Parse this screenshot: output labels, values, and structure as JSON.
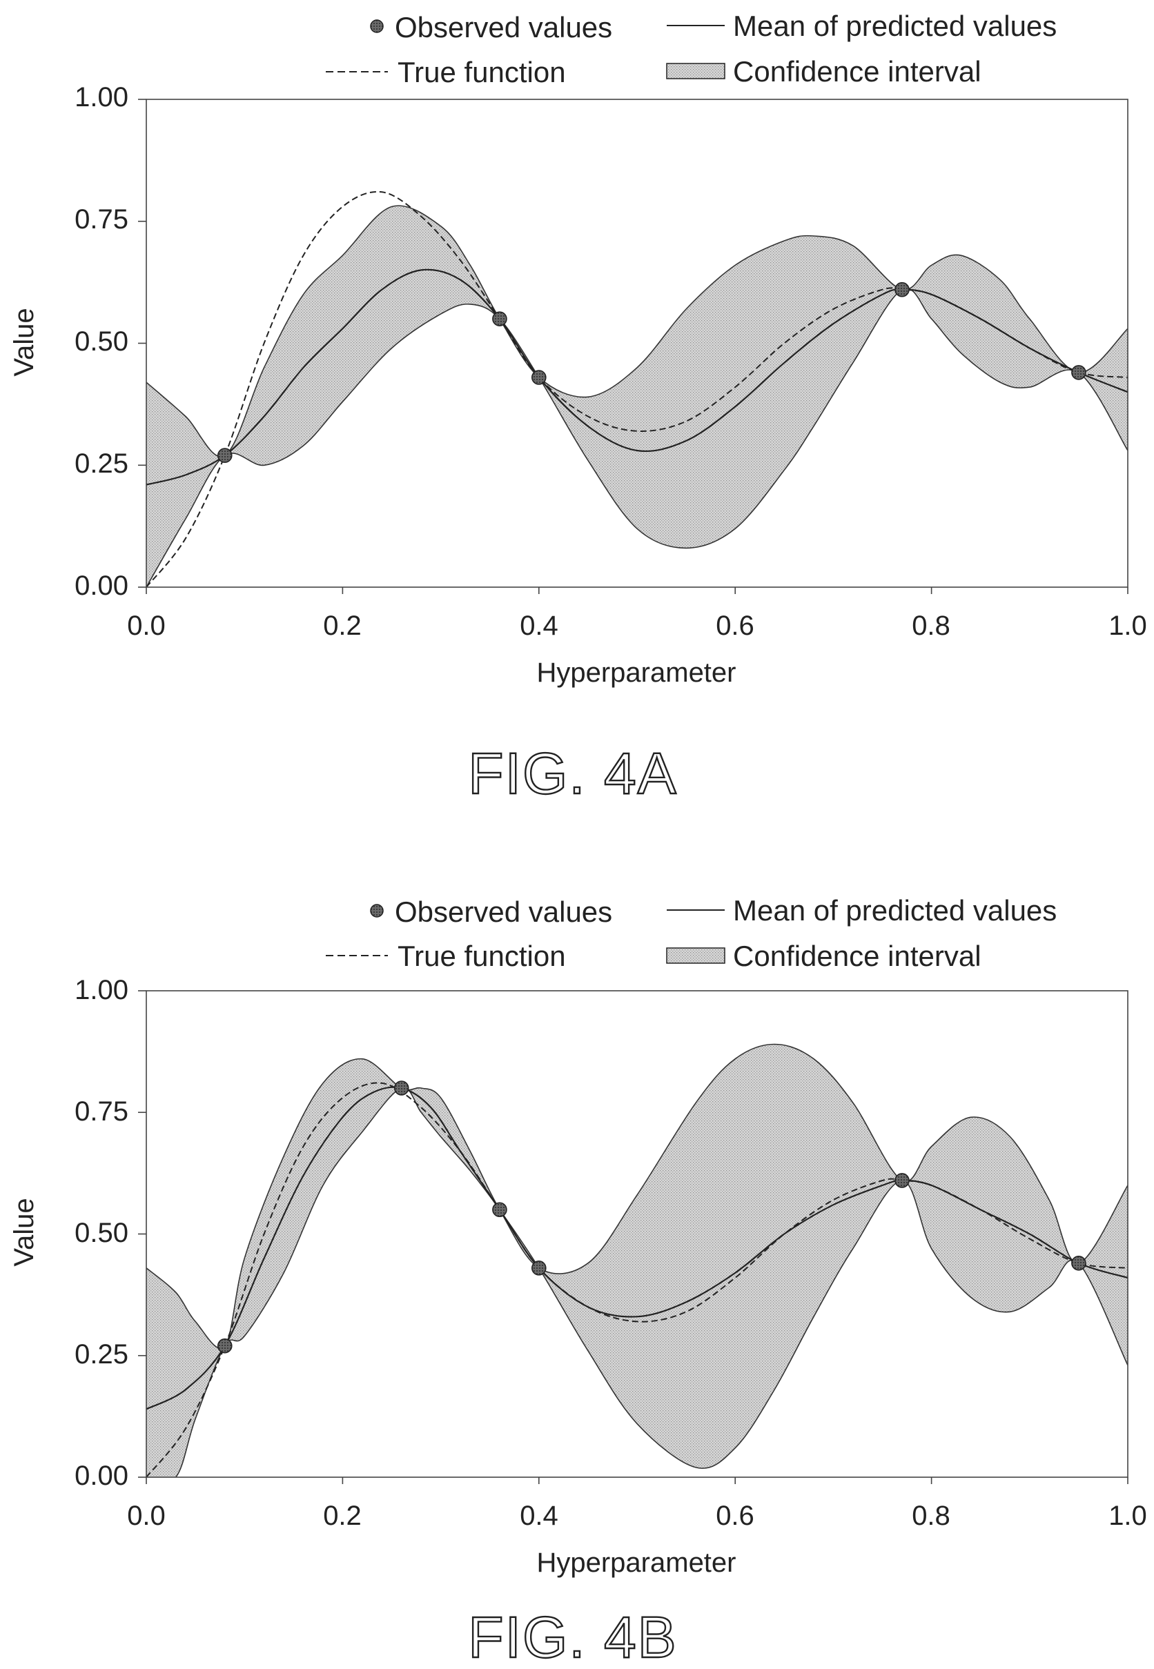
{
  "chart_data": [
    {
      "type": "line",
      "caption": "FIG. 4A",
      "xlabel": "Hyperparameter",
      "ylabel": "Value",
      "xlim": [
        0.0,
        1.0
      ],
      "ylim": [
        0.0,
        1.0
      ],
      "xticks": [
        "0.0",
        "0.2",
        "0.4",
        "0.6",
        "0.8",
        "1.0"
      ],
      "yticks": [
        "0.00",
        "0.25",
        "0.50",
        "0.75",
        "1.00"
      ],
      "grid": false,
      "legend": {
        "position": "top",
        "observed": "Observed values",
        "true_function": "True function",
        "mean": "Mean of predicted values",
        "confidence": "Confidence interval"
      },
      "observed": {
        "x": [
          0.08,
          0.36,
          0.4,
          0.77,
          0.95
        ],
        "y": [
          0.27,
          0.55,
          0.43,
          0.61,
          0.44
        ]
      },
      "true_function": {
        "x": [
          0.0,
          0.04,
          0.08,
          0.12,
          0.16,
          0.2,
          0.24,
          0.28,
          0.32,
          0.36,
          0.4,
          0.45,
          0.5,
          0.55,
          0.6,
          0.65,
          0.7,
          0.75,
          0.77,
          0.8,
          0.85,
          0.9,
          0.95,
          1.0
        ],
        "y": [
          0.0,
          0.1,
          0.27,
          0.5,
          0.68,
          0.78,
          0.81,
          0.76,
          0.67,
          0.55,
          0.43,
          0.35,
          0.32,
          0.34,
          0.41,
          0.5,
          0.57,
          0.61,
          0.61,
          0.6,
          0.55,
          0.49,
          0.44,
          0.43
        ]
      },
      "mean": {
        "x": [
          0.0,
          0.04,
          0.08,
          0.12,
          0.16,
          0.2,
          0.24,
          0.28,
          0.32,
          0.36,
          0.4,
          0.45,
          0.5,
          0.55,
          0.6,
          0.65,
          0.7,
          0.75,
          0.77,
          0.8,
          0.85,
          0.9,
          0.95,
          1.0
        ],
        "y": [
          0.21,
          0.23,
          0.27,
          0.35,
          0.45,
          0.53,
          0.61,
          0.65,
          0.63,
          0.55,
          0.43,
          0.33,
          0.28,
          0.3,
          0.37,
          0.46,
          0.54,
          0.6,
          0.61,
          0.6,
          0.55,
          0.49,
          0.44,
          0.4
        ]
      },
      "confidence_interval": {
        "x": [
          0.0,
          0.04,
          0.08,
          0.12,
          0.16,
          0.2,
          0.25,
          0.3,
          0.33,
          0.36,
          0.4,
          0.45,
          0.5,
          0.55,
          0.6,
          0.65,
          0.68,
          0.72,
          0.77,
          0.8,
          0.83,
          0.87,
          0.9,
          0.95,
          1.0
        ],
        "lower": [
          0.0,
          0.14,
          0.27,
          0.25,
          0.29,
          0.38,
          0.49,
          0.56,
          0.58,
          0.55,
          0.43,
          0.26,
          0.12,
          0.08,
          0.12,
          0.24,
          0.33,
          0.46,
          0.61,
          0.55,
          0.48,
          0.42,
          0.41,
          0.44,
          0.28
        ],
        "upper": [
          0.42,
          0.35,
          0.27,
          0.45,
          0.6,
          0.68,
          0.78,
          0.74,
          0.66,
          0.55,
          0.43,
          0.39,
          0.45,
          0.57,
          0.66,
          0.71,
          0.72,
          0.7,
          0.61,
          0.66,
          0.68,
          0.63,
          0.55,
          0.44,
          0.53
        ]
      }
    },
    {
      "type": "line",
      "caption": "FIG. 4B",
      "xlabel": "Hyperparameter",
      "ylabel": "Value",
      "xlim": [
        0.0,
        1.0
      ],
      "ylim": [
        0.0,
        1.0
      ],
      "xticks": [
        "0.0",
        "0.2",
        "0.4",
        "0.6",
        "0.8",
        "1.0"
      ],
      "yticks": [
        "0.00",
        "0.25",
        "0.50",
        "0.75",
        "1.00"
      ],
      "grid": false,
      "legend": {
        "position": "top",
        "observed": "Observed values",
        "true_function": "True function",
        "mean": "Mean of predicted values",
        "confidence": "Confidence interval"
      },
      "observed": {
        "x": [
          0.08,
          0.26,
          0.36,
          0.4,
          0.77,
          0.95
        ],
        "y": [
          0.27,
          0.8,
          0.55,
          0.43,
          0.61,
          0.44
        ]
      },
      "true_function": {
        "x": [
          0.0,
          0.04,
          0.08,
          0.12,
          0.16,
          0.2,
          0.24,
          0.28,
          0.32,
          0.36,
          0.4,
          0.45,
          0.5,
          0.55,
          0.6,
          0.65,
          0.7,
          0.75,
          0.77,
          0.8,
          0.85,
          0.9,
          0.95,
          1.0
        ],
        "y": [
          0.0,
          0.1,
          0.27,
          0.5,
          0.68,
          0.78,
          0.81,
          0.76,
          0.67,
          0.55,
          0.43,
          0.35,
          0.32,
          0.34,
          0.41,
          0.5,
          0.57,
          0.61,
          0.61,
          0.6,
          0.55,
          0.49,
          0.44,
          0.43
        ]
      },
      "mean": {
        "x": [
          0.0,
          0.04,
          0.08,
          0.12,
          0.16,
          0.2,
          0.23,
          0.26,
          0.29,
          0.32,
          0.36,
          0.4,
          0.45,
          0.5,
          0.55,
          0.6,
          0.65,
          0.7,
          0.75,
          0.77,
          0.8,
          0.85,
          0.9,
          0.95,
          1.0
        ],
        "y": [
          0.14,
          0.18,
          0.27,
          0.45,
          0.62,
          0.74,
          0.79,
          0.8,
          0.76,
          0.67,
          0.55,
          0.43,
          0.35,
          0.33,
          0.36,
          0.42,
          0.5,
          0.56,
          0.6,
          0.61,
          0.6,
          0.55,
          0.5,
          0.44,
          0.41
        ]
      },
      "confidence_interval": {
        "x": [
          0.0,
          0.03,
          0.05,
          0.08,
          0.1,
          0.14,
          0.18,
          0.22,
          0.26,
          0.28,
          0.3,
          0.33,
          0.36,
          0.4,
          0.45,
          0.5,
          0.56,
          0.6,
          0.64,
          0.68,
          0.72,
          0.77,
          0.8,
          0.84,
          0.88,
          0.92,
          0.95,
          1.0
        ],
        "lower": [
          0.0,
          0.0,
          0.12,
          0.27,
          0.29,
          0.42,
          0.6,
          0.71,
          0.8,
          0.75,
          0.7,
          0.63,
          0.55,
          0.43,
          0.26,
          0.11,
          0.02,
          0.06,
          0.18,
          0.33,
          0.47,
          0.61,
          0.47,
          0.37,
          0.34,
          0.39,
          0.44,
          0.23
        ],
        "upper": [
          0.43,
          0.38,
          0.32,
          0.27,
          0.45,
          0.66,
          0.81,
          0.86,
          0.8,
          0.8,
          0.78,
          0.67,
          0.55,
          0.43,
          0.44,
          0.58,
          0.77,
          0.86,
          0.89,
          0.86,
          0.77,
          0.61,
          0.68,
          0.74,
          0.7,
          0.57,
          0.44,
          0.6
        ]
      }
    }
  ]
}
